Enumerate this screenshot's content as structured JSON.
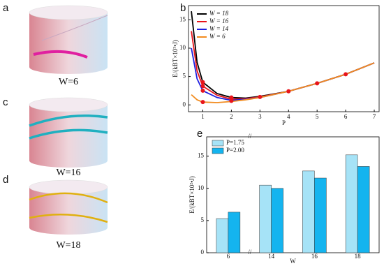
{
  "panels": [
    {
      "label": "a",
      "caption": "W=6"
    },
    {
      "label": "c",
      "caption": "W=16"
    },
    {
      "label": "d",
      "caption": "W=18"
    }
  ],
  "chart_data": [
    {
      "type": "line",
      "panel_label": "b",
      "y_label": "E/(kBT×10³•J)",
      "x_label": "P",
      "x": [
        0.6,
        0.8,
        1,
        1.5,
        2,
        2.5,
        3,
        4,
        5,
        6,
        7
      ],
      "series": [
        {
          "name": "W = 18",
          "color": "#000000",
          "values": [
            16.5,
            7.5,
            4,
            2,
            1.3,
            1.2,
            1.5,
            2.4,
            3.8,
            5.4,
            7.4
          ]
        },
        {
          "name": "W = 16",
          "color": "#e8141b",
          "values": [
            13,
            6,
            3.3,
            1.7,
            1.0,
            1.1,
            1.4,
            2.4,
            3.8,
            5.4,
            7.4
          ]
        },
        {
          "name": "W = 14",
          "color": "#1f1fe0",
          "values": [
            10,
            4.6,
            2.5,
            1.3,
            0.8,
            1.0,
            1.3,
            2.4,
            3.8,
            5.4,
            7.4
          ]
        },
        {
          "name": "W = 6",
          "color": "#f28c1f",
          "values": [
            1.8,
            0.9,
            0.5,
            0.4,
            0.6,
            0.9,
            1.3,
            2.4,
            3.8,
            5.4,
            7.4
          ]
        }
      ],
      "markers": {
        "color": "#e8141b",
        "x": [
          1,
          1,
          1,
          1,
          2,
          2,
          3,
          4,
          5,
          6
        ],
        "values": [
          0.5,
          2.5,
          3.3,
          4,
          0.7,
          1.3,
          1.4,
          2.4,
          3.8,
          5.4
        ]
      },
      "xlim": [
        0.5,
        7.17
      ],
      "ylim": [
        -1.2,
        17.5
      ],
      "xticks": [
        1,
        2,
        3,
        4,
        5,
        6,
        7
      ],
      "yticks": [
        0,
        5,
        10,
        15
      ]
    },
    {
      "type": "bar",
      "panel_label": "e",
      "y_label": "E/(kBT×10²•J)",
      "x_label": "W",
      "categories": [
        "6",
        "14",
        "16",
        "18"
      ],
      "series": [
        {
          "name": "P=1.75",
          "color": "#a6e3f7",
          "values": [
            5.3,
            10.5,
            12.7,
            15.2
          ]
        },
        {
          "name": "P=2.00",
          "color": "#14b4ef",
          "values": [
            6.3,
            10.0,
            11.6,
            13.4
          ]
        }
      ],
      "ylim": [
        0,
        18
      ],
      "yticks": [
        0,
        5,
        10,
        15
      ]
    }
  ]
}
